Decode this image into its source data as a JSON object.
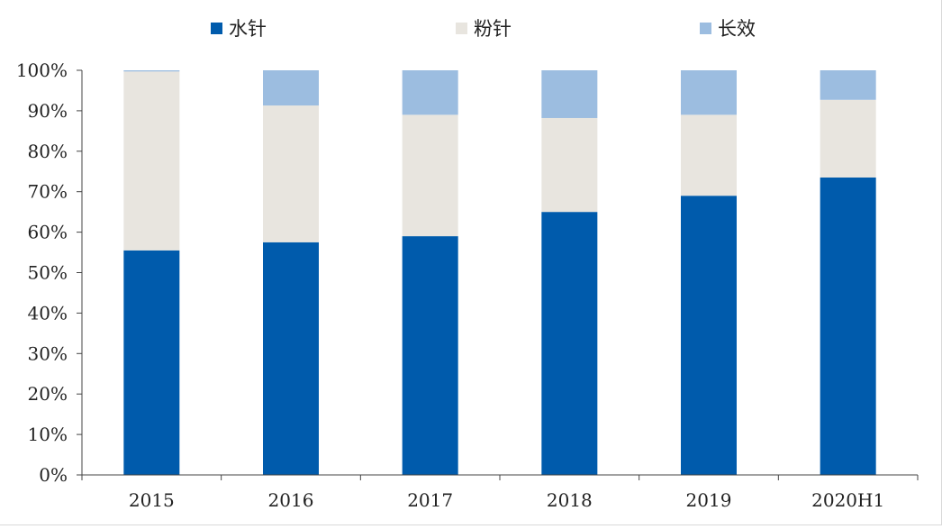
{
  "chart_data": {
    "type": "bar",
    "stacked": true,
    "categories": [
      "2015",
      "2016",
      "2017",
      "2018",
      "2019",
      "2020H1"
    ],
    "series": [
      {
        "name": "水针",
        "color": "#005bac",
        "values": [
          55.5,
          57.5,
          59,
          65,
          69,
          73.5
        ]
      },
      {
        "name": "粉针",
        "color": "#e8e5df",
        "values": [
          44.2,
          33.8,
          30,
          23.2,
          20,
          19.2
        ]
      },
      {
        "name": "长效",
        "color": "#9cbde0",
        "values": [
          0.3,
          8.7,
          11,
          11.8,
          11,
          7.3
        ]
      }
    ],
    "yticks": [
      "0%",
      "10%",
      "20%",
      "30%",
      "40%",
      "50%",
      "60%",
      "70%",
      "80%",
      "90%",
      "100%"
    ],
    "ylim": [
      0,
      100
    ],
    "title": "",
    "xlabel": "",
    "ylabel": "",
    "grid": false,
    "legend_position": "top"
  }
}
